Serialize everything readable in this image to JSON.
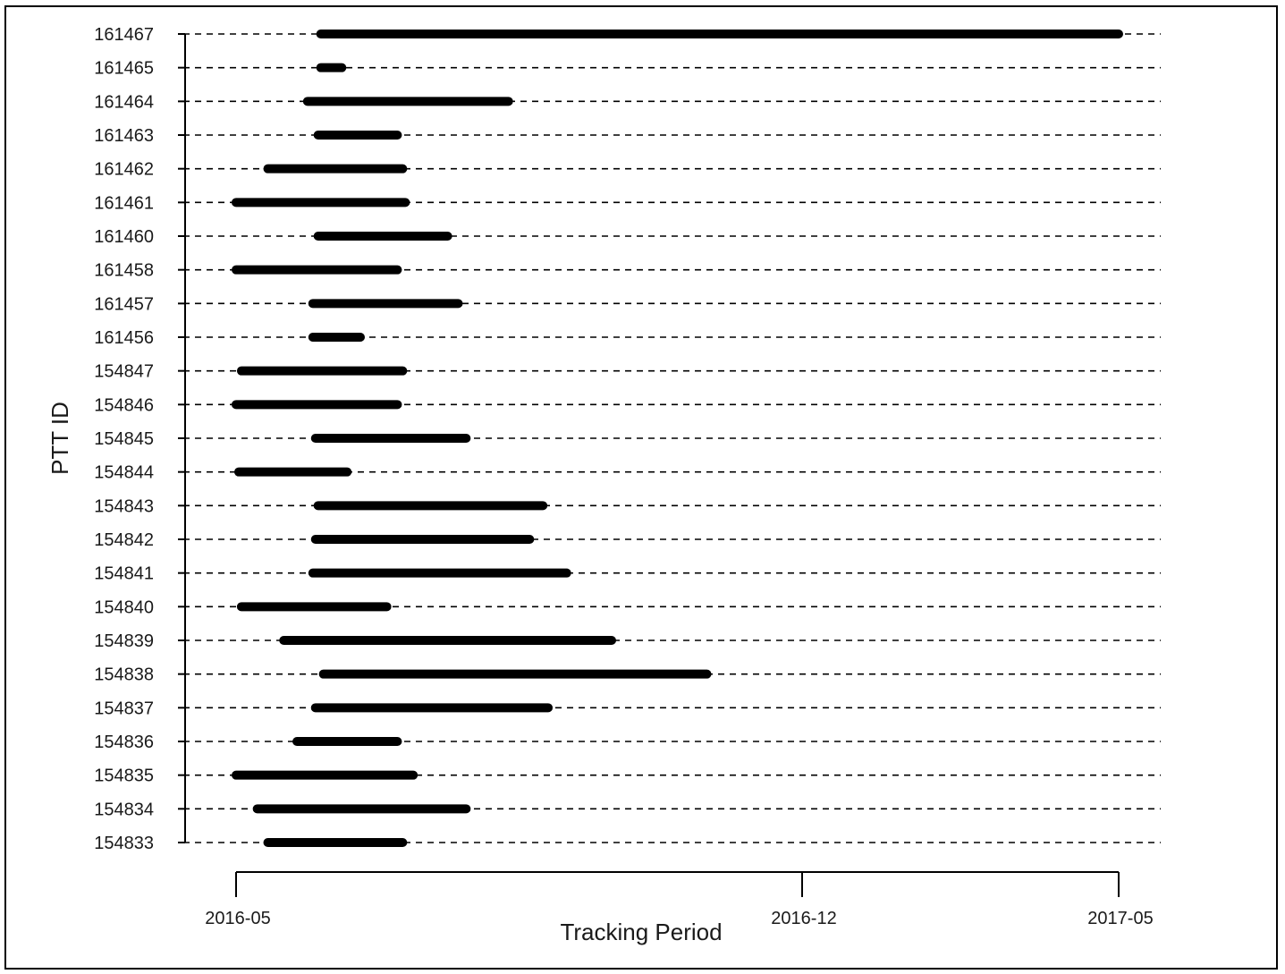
{
  "chart_data": {
    "type": "gantt",
    "title": "",
    "xlabel": "Tracking Period",
    "ylabel": "PTT ID",
    "x_ticks": [
      "2016-05",
      "2016-12",
      "2017-05"
    ],
    "x_range": [
      "2016-05-01",
      "2017-05-01"
    ],
    "grid": "dashed horizontal line per row",
    "bar_color": "#000000",
    "series": [
      {
        "id": "161467",
        "start": "2016-06-02",
        "end": "2017-05-01"
      },
      {
        "id": "161465",
        "start": "2016-06-02",
        "end": "2016-06-10"
      },
      {
        "id": "161464",
        "start": "2016-05-28",
        "end": "2016-08-12"
      },
      {
        "id": "161463",
        "start": "2016-06-01",
        "end": "2016-07-01"
      },
      {
        "id": "161462",
        "start": "2016-05-13",
        "end": "2016-07-03"
      },
      {
        "id": "161461",
        "start": "2016-05-01",
        "end": "2016-07-04"
      },
      {
        "id": "161460",
        "start": "2016-06-01",
        "end": "2016-07-20"
      },
      {
        "id": "161458",
        "start": "2016-05-01",
        "end": "2016-07-01"
      },
      {
        "id": "161457",
        "start": "2016-05-30",
        "end": "2016-07-24"
      },
      {
        "id": "161456",
        "start": "2016-05-30",
        "end": "2016-06-17"
      },
      {
        "id": "154847",
        "start": "2016-05-03",
        "end": "2016-07-03"
      },
      {
        "id": "154846",
        "start": "2016-05-01",
        "end": "2016-07-01"
      },
      {
        "id": "154845",
        "start": "2016-05-31",
        "end": "2016-07-27"
      },
      {
        "id": "154844",
        "start": "2016-05-02",
        "end": "2016-06-12"
      },
      {
        "id": "154843",
        "start": "2016-06-01",
        "end": "2016-08-25"
      },
      {
        "id": "154842",
        "start": "2016-05-31",
        "end": "2016-08-20"
      },
      {
        "id": "154841",
        "start": "2016-05-30",
        "end": "2016-09-03"
      },
      {
        "id": "154840",
        "start": "2016-05-03",
        "end": "2016-06-27"
      },
      {
        "id": "154839",
        "start": "2016-05-19",
        "end": "2016-09-20"
      },
      {
        "id": "154838",
        "start": "2016-06-03",
        "end": "2016-10-26"
      },
      {
        "id": "154837",
        "start": "2016-05-31",
        "end": "2016-08-27"
      },
      {
        "id": "154836",
        "start": "2016-05-24",
        "end": "2016-07-01"
      },
      {
        "id": "154835",
        "start": "2016-05-01",
        "end": "2016-07-07"
      },
      {
        "id": "154834",
        "start": "2016-05-09",
        "end": "2016-07-27"
      },
      {
        "id": "154833",
        "start": "2016-05-13",
        "end": "2016-07-03"
      }
    ]
  }
}
